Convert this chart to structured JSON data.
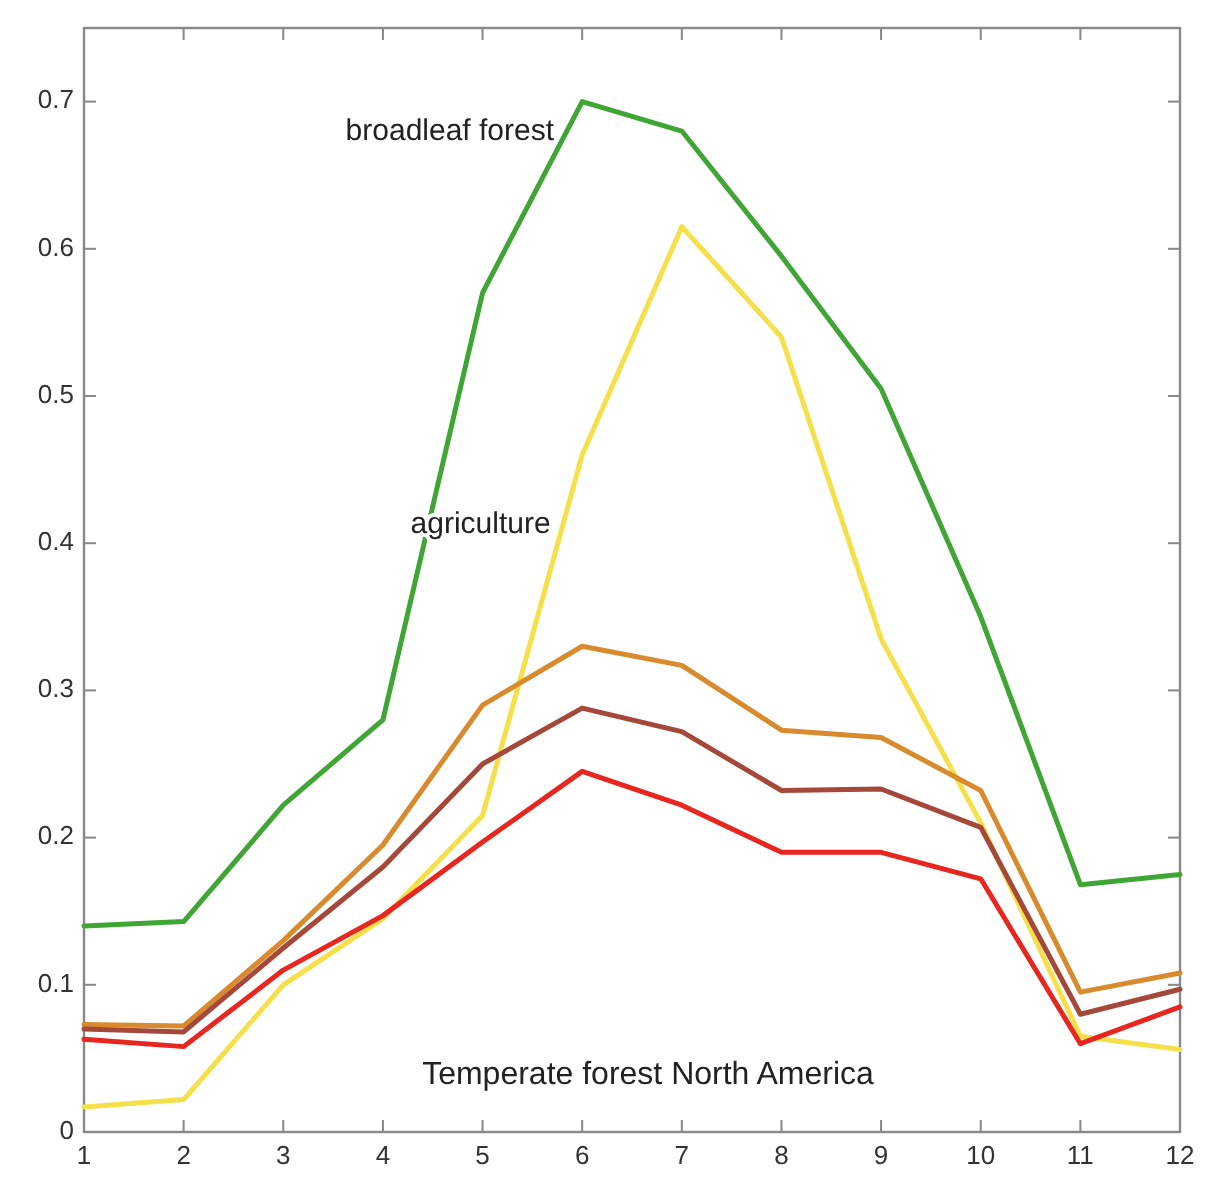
{
  "chart_data": {
    "type": "line",
    "x": [
      1,
      2,
      3,
      4,
      5,
      6,
      7,
      8,
      9,
      10,
      11,
      12
    ],
    "xlim": [
      1,
      12
    ],
    "xticks": [
      1,
      2,
      3,
      4,
      5,
      6,
      7,
      8,
      9,
      10,
      11,
      12
    ],
    "ylim": [
      0,
      0.75
    ],
    "yticks": [
      0,
      0.1,
      0.2,
      0.3,
      0.4,
      0.5,
      0.6,
      0.7
    ],
    "grid": false,
    "marker": "none",
    "line_style": "solid",
    "annotations": [
      "Temperate forest North America"
    ],
    "series": [
      {
        "name": "broadleaf forest",
        "color": "#3fa535",
        "values": [
          0.14,
          0.143,
          0.222,
          0.28,
          0.57,
          0.7,
          0.68,
          0.595,
          0.505,
          0.35,
          0.168,
          0.175
        ]
      },
      {
        "name": "agriculture",
        "color": "#f5e04a",
        "values": [
          0.017,
          0.022,
          0.1,
          0.145,
          0.215,
          0.46,
          0.615,
          0.54,
          0.335,
          0.21,
          0.065,
          0.056
        ]
      },
      {
        "color": "#d88a2c",
        "values": [
          0.073,
          0.072,
          0.13,
          0.195,
          0.29,
          0.33,
          0.317,
          0.273,
          0.268,
          0.232,
          0.095,
          0.108
        ]
      },
      {
        "color": "#a5483a",
        "values": [
          0.07,
          0.068,
          0.125,
          0.18,
          0.25,
          0.288,
          0.272,
          0.232,
          0.233,
          0.207,
          0.08,
          0.097
        ]
      },
      {
        "color": "#e8261f",
        "values": [
          0.063,
          0.058,
          0.11,
          0.147,
          0.197,
          0.245,
          0.222,
          0.19,
          0.19,
          0.172,
          0.06,
          0.085
        ]
      }
    ]
  }
}
